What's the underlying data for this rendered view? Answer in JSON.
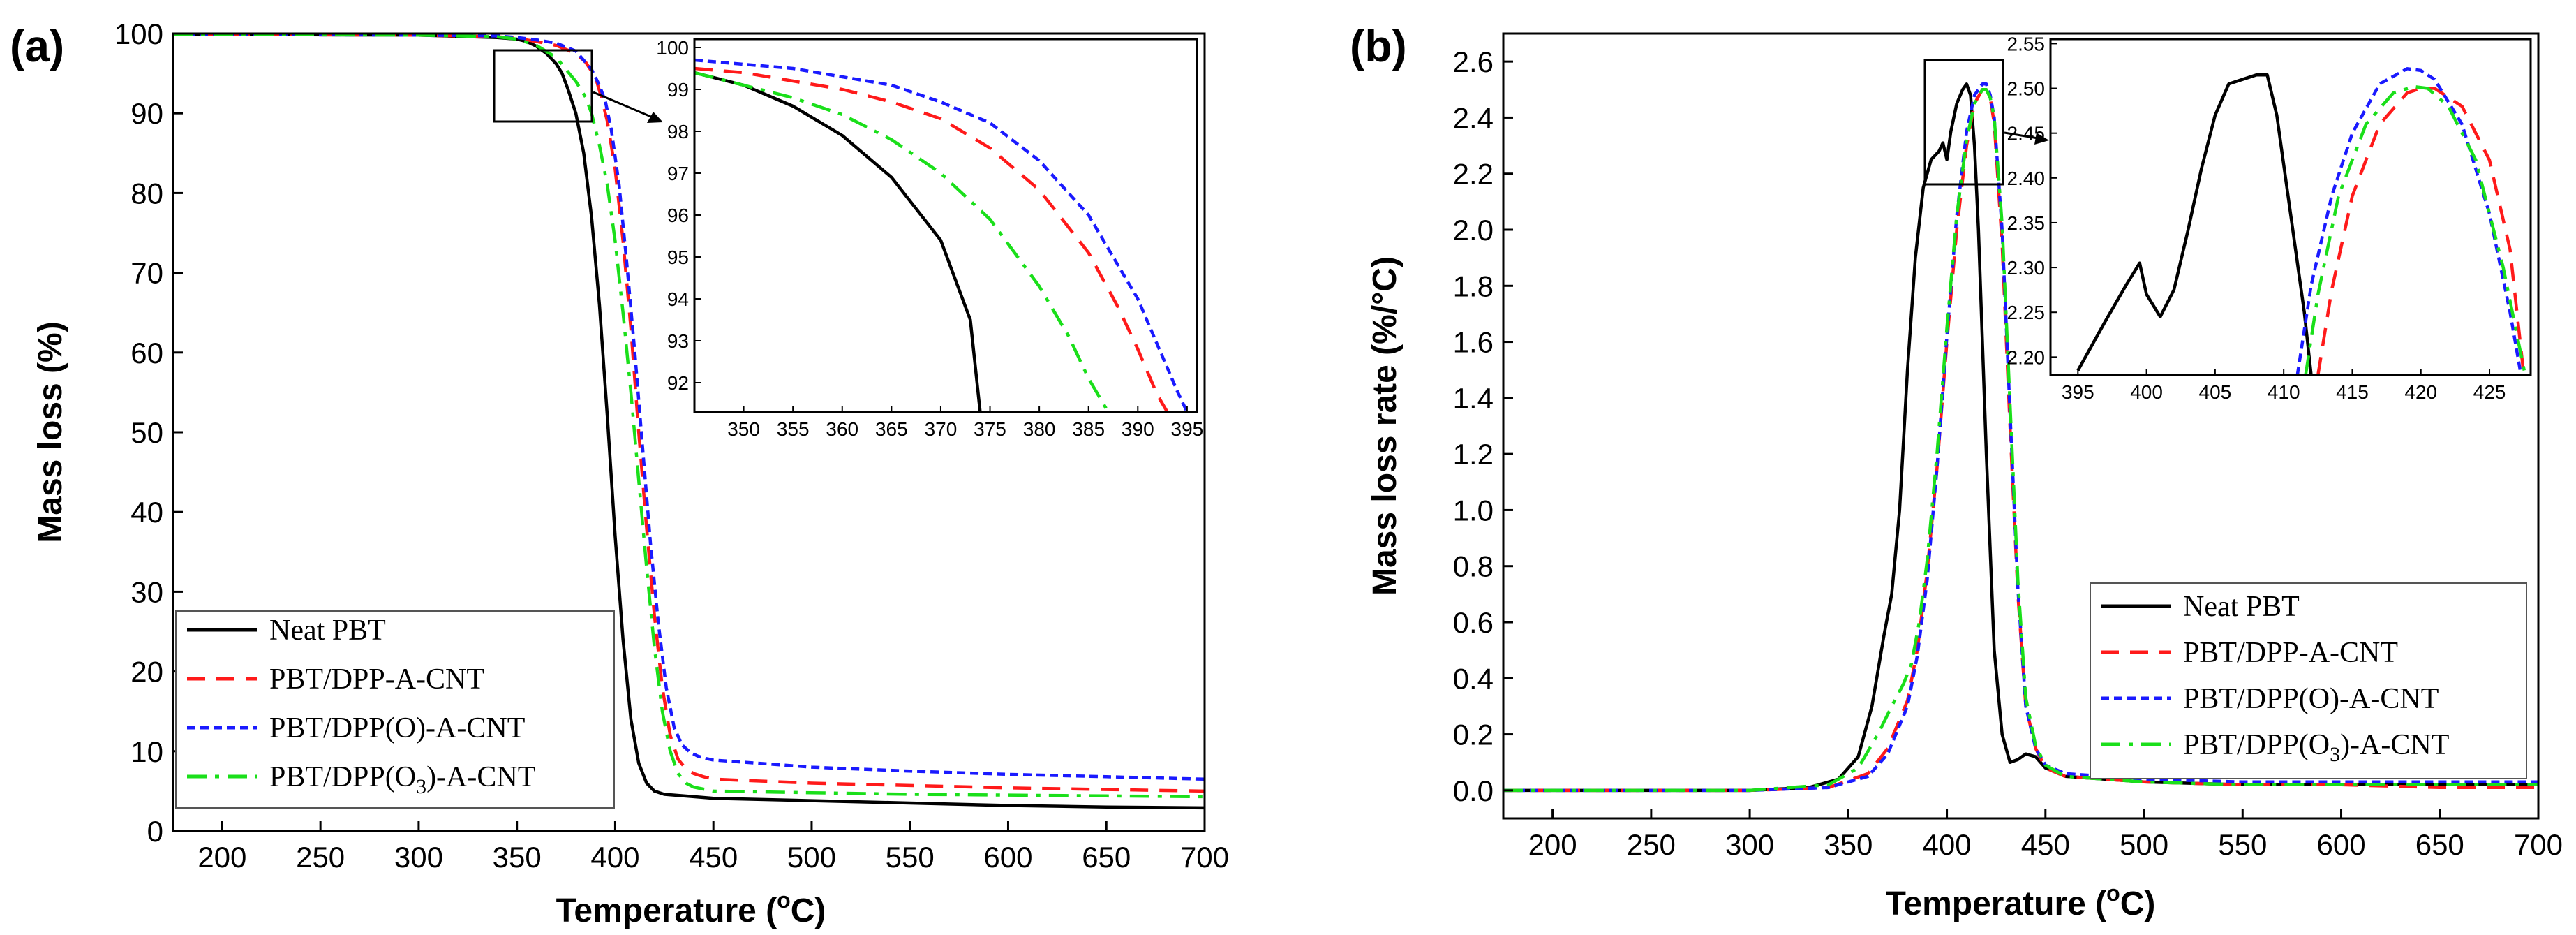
{
  "colors": {
    "neat": "#000000",
    "dpp": "#ff1a1a",
    "dppo": "#1a1aff",
    "dppo3": "#1adf1a"
  },
  "chart_data": [
    {
      "panel_label": "(a)",
      "type": "line",
      "xlabel_main": "Temperature (",
      "xlabel_unit_sup": "o",
      "xlabel_unit_tail": "C)",
      "ylabel": "Mass loss (%)",
      "xlim": [
        175,
        700
      ],
      "ylim": [
        0,
        100
      ],
      "xticks": [
        200,
        250,
        300,
        350,
        400,
        450,
        500,
        550,
        600,
        650,
        700
      ],
      "yticks": [
        0,
        10,
        20,
        30,
        40,
        50,
        60,
        70,
        80,
        90,
        100
      ],
      "legend_position": "bottom-left",
      "series": [
        {
          "name": "Neat PBT",
          "style": "solid",
          "color_key": "neat",
          "x": [
            175,
            300,
            340,
            350,
            355,
            360,
            365,
            370,
            373,
            376,
            380,
            384,
            388,
            392,
            396,
            400,
            404,
            408,
            412,
            416,
            420,
            425,
            430,
            440,
            450,
            500,
            550,
            600,
            650,
            700
          ],
          "y": [
            99.9,
            99.8,
            99.5,
            99.3,
            99.0,
            98.4,
            97.5,
            96.2,
            95.0,
            93.0,
            90.0,
            85.0,
            77.0,
            66.0,
            52.0,
            37.0,
            24.0,
            14.0,
            8.5,
            6.0,
            5.0,
            4.6,
            4.5,
            4.3,
            4.1,
            3.8,
            3.5,
            3.2,
            3.0,
            2.9
          ]
        },
        {
          "name": "PBT/DPP-A-CNT",
          "style": "dash",
          "color_key": "dpp",
          "x": [
            175,
            300,
            340,
            350,
            360,
            370,
            380,
            385,
            390,
            393,
            396,
            400,
            404,
            408,
            412,
            416,
            420,
            424,
            428,
            432,
            436,
            440,
            445,
            450,
            500,
            550,
            600,
            650,
            700
          ],
          "y": [
            99.9,
            99.8,
            99.6,
            99.4,
            99.0,
            98.5,
            97.5,
            96.4,
            94.5,
            92.0,
            89.0,
            83.0,
            74.0,
            63.0,
            50.0,
            38.0,
            27.0,
            18.0,
            12.0,
            9.0,
            7.8,
            7.2,
            6.8,
            6.5,
            6.0,
            5.7,
            5.4,
            5.2,
            5.0
          ]
        },
        {
          "name": "PBT/DPP(O)-A-CNT",
          "style": "dot",
          "color_key": "dppo",
          "x": [
            175,
            300,
            340,
            350,
            360,
            370,
            380,
            388,
            392,
            395,
            398,
            402,
            406,
            410,
            414,
            418,
            422,
            426,
            430,
            434,
            438,
            442,
            446,
            450,
            500,
            550,
            600,
            650,
            700
          ],
          "y": [
            99.9,
            99.8,
            99.7,
            99.5,
            99.2,
            98.8,
            97.8,
            95.5,
            93.5,
            91.5,
            88.0,
            81.0,
            71.0,
            60.0,
            48.0,
            36.0,
            26.0,
            18.0,
            13.0,
            10.8,
            9.9,
            9.4,
            9.1,
            8.9,
            8.0,
            7.5,
            7.1,
            6.8,
            6.5
          ]
        },
        {
          "name": "PBT/DPP(O3)-A-CNT",
          "legend_main": "PBT/DPP(O",
          "legend_sub": "3",
          "legend_tail": ")-A-CNT",
          "style": "dashdot",
          "color_key": "dppo3",
          "x": [
            175,
            300,
            340,
            350,
            360,
            370,
            375,
            380,
            385,
            388,
            392,
            396,
            400,
            404,
            408,
            412,
            416,
            420,
            424,
            428,
            432,
            436,
            440,
            450,
            500,
            550,
            600,
            650,
            700
          ],
          "y": [
            99.9,
            99.8,
            99.6,
            99.3,
            98.5,
            97.0,
            95.5,
            94.0,
            92.0,
            90.0,
            86.0,
            81.0,
            74.0,
            65.0,
            55.0,
            44.0,
            33.0,
            23.0,
            15.0,
            10.0,
            7.2,
            6.0,
            5.5,
            5.0,
            4.8,
            4.6,
            4.5,
            4.4,
            4.3
          ]
        }
      ],
      "inset": {
        "xlim": [
          345,
          396
        ],
        "ylim": [
          91.3,
          100.2
        ],
        "xticks": [
          350,
          355,
          360,
          365,
          370,
          375,
          380,
          385,
          390,
          395
        ],
        "yticks": [
          92,
          93,
          94,
          95,
          96,
          97,
          98,
          99,
          100
        ],
        "series_x": [
          [
            345,
            350,
            355,
            360,
            365,
            370,
            373,
            374
          ],
          [
            345,
            350,
            355,
            360,
            365,
            370,
            375,
            380,
            385,
            388,
            390,
            392,
            393
          ],
          [
            345,
            350,
            355,
            360,
            365,
            370,
            375,
            380,
            385,
            390,
            392,
            394,
            395
          ],
          [
            345,
            350,
            355,
            360,
            365,
            370,
            375,
            380,
            383,
            385,
            387
          ]
        ],
        "series_y": [
          [
            99.4,
            99.1,
            98.6,
            97.9,
            96.9,
            95.4,
            93.5,
            91.3
          ],
          [
            99.5,
            99.4,
            99.2,
            99.0,
            98.7,
            98.3,
            97.6,
            96.6,
            95.1,
            93.8,
            92.8,
            91.7,
            91.3
          ],
          [
            99.7,
            99.6,
            99.5,
            99.3,
            99.1,
            98.7,
            98.2,
            97.3,
            96.0,
            94.0,
            92.9,
            91.8,
            91.3
          ],
          [
            99.4,
            99.1,
            98.8,
            98.4,
            97.8,
            97.0,
            95.9,
            94.3,
            93.1,
            92.1,
            91.3
          ]
        ]
      }
    },
    {
      "panel_label": "(b)",
      "type": "line",
      "xlabel_main": "Temperature (",
      "xlabel_unit_sup": "o",
      "xlabel_unit_tail": "C)",
      "ylabel": "Mass loss rate (%/°C)",
      "xlim": [
        175,
        700
      ],
      "ylim": [
        -0.1,
        2.7
      ],
      "xticks": [
        200,
        250,
        300,
        350,
        400,
        450,
        500,
        550,
        600,
        650,
        700
      ],
      "yticks": [
        0.0,
        0.2,
        0.4,
        0.6,
        0.8,
        1.0,
        1.2,
        1.4,
        1.6,
        1.8,
        2.0,
        2.2,
        2.4,
        2.6
      ],
      "ytick_labels": [
        "0.0",
        "0.2",
        "0.4",
        "0.6",
        "0.8",
        "1.0",
        "1.2",
        "1.4",
        "1.6",
        "1.8",
        "2.0",
        "2.2",
        "2.4",
        "2.6"
      ],
      "legend_position": "bottom-right",
      "series": [
        {
          "name": "Neat PBT",
          "style": "solid",
          "color_key": "neat",
          "x": [
            175,
            300,
            330,
            345,
            355,
            362,
            368,
            372,
            376,
            380,
            384,
            388,
            392,
            396,
            398,
            400,
            402,
            405,
            408,
            410,
            412,
            414,
            416,
            420,
            424,
            428,
            432,
            436,
            440,
            445,
            450,
            460,
            500,
            550,
            600,
            650,
            700
          ],
          "y": [
            0.0,
            0.0,
            0.01,
            0.04,
            0.12,
            0.3,
            0.55,
            0.7,
            1.0,
            1.5,
            1.9,
            2.15,
            2.25,
            2.28,
            2.31,
            2.25,
            2.35,
            2.45,
            2.5,
            2.52,
            2.48,
            2.3,
            2.0,
            1.2,
            0.5,
            0.2,
            0.1,
            0.11,
            0.13,
            0.12,
            0.08,
            0.05,
            0.03,
            0.02,
            0.02,
            0.02,
            0.02
          ]
        },
        {
          "name": "PBT/DPP-A-CNT",
          "style": "dash",
          "color_key": "dpp",
          "x": [
            175,
            300,
            340,
            360,
            370,
            380,
            385,
            390,
            395,
            400,
            405,
            410,
            414,
            418,
            420,
            422,
            424,
            428,
            432,
            436,
            440,
            445,
            450,
            460,
            500,
            550,
            600,
            650,
            700
          ],
          "y": [
            0.0,
            0.0,
            0.01,
            0.06,
            0.15,
            0.32,
            0.5,
            0.78,
            1.15,
            1.6,
            2.0,
            2.3,
            2.45,
            2.5,
            2.5,
            2.47,
            2.38,
            1.95,
            1.3,
            0.7,
            0.3,
            0.15,
            0.08,
            0.05,
            0.03,
            0.02,
            0.02,
            0.01,
            0.01
          ]
        },
        {
          "name": "PBT/DPP(O)-A-CNT",
          "style": "dot",
          "color_key": "dppo",
          "x": [
            175,
            300,
            340,
            360,
            370,
            380,
            385,
            390,
            395,
            400,
            405,
            410,
            414,
            418,
            420,
            422,
            424,
            428,
            432,
            436,
            440,
            445,
            450,
            460,
            500,
            550,
            600,
            650,
            700
          ],
          "y": [
            0.0,
            0.0,
            0.01,
            0.05,
            0.13,
            0.3,
            0.48,
            0.75,
            1.15,
            1.62,
            2.05,
            2.35,
            2.48,
            2.52,
            2.52,
            2.48,
            2.4,
            2.0,
            1.35,
            0.72,
            0.3,
            0.15,
            0.09,
            0.06,
            0.04,
            0.03,
            0.03,
            0.03,
            0.03
          ]
        },
        {
          "name": "PBT/DPP(O3)-A-CNT",
          "legend_main": "PBT/DPP(O",
          "legend_sub": "3",
          "legend_tail": ")-A-CNT",
          "style": "dashdot",
          "color_key": "dppo3",
          "x": [
            175,
            300,
            340,
            355,
            365,
            372,
            378,
            382,
            386,
            390,
            395,
            400,
            405,
            410,
            414,
            418,
            420,
            422,
            424,
            428,
            432,
            436,
            440,
            445,
            450,
            460,
            500,
            550,
            600,
            650,
            700
          ],
          "y": [
            0.0,
            0.0,
            0.02,
            0.08,
            0.2,
            0.3,
            0.38,
            0.45,
            0.6,
            0.82,
            1.2,
            1.65,
            2.05,
            2.32,
            2.45,
            2.5,
            2.5,
            2.47,
            2.4,
            2.02,
            1.38,
            0.75,
            0.33,
            0.16,
            0.09,
            0.05,
            0.03,
            0.02,
            0.02,
            0.02,
            0.02
          ]
        }
      ],
      "inset": {
        "xlim": [
          393,
          428
        ],
        "ylim": [
          2.18,
          2.555
        ],
        "xticks": [
          395,
          400,
          405,
          410,
          415,
          420,
          425
        ],
        "yticks": [
          2.2,
          2.25,
          2.3,
          2.35,
          2.4,
          2.45,
          2.5,
          2.55
        ],
        "ytick_labels": [
          "2.20",
          "2.25",
          "2.30",
          "2.35",
          "2.40",
          "2.45",
          "2.50",
          "2.55"
        ],
        "series_x": [
          [
            395,
            397,
            398.5,
            399.5,
            400,
            401,
            402,
            403,
            404,
            405,
            406,
            407,
            408,
            408.8,
            409.5,
            410.5,
            411.5,
            412
          ],
          [
            412.5,
            413.5,
            415,
            417,
            419,
            420,
            421,
            423,
            425,
            426.5,
            427.5
          ],
          [
            411,
            412,
            413.5,
            415,
            417,
            419,
            420,
            421,
            423,
            425,
            426.5,
            427.3
          ],
          [
            411.6,
            412.5,
            414,
            416,
            418,
            419.5,
            420.5,
            422,
            424,
            426,
            427.6
          ]
        ],
        "series_y": [
          [
            2.185,
            2.24,
            2.28,
            2.305,
            2.27,
            2.245,
            2.275,
            2.34,
            2.41,
            2.47,
            2.505,
            2.51,
            2.515,
            2.515,
            2.47,
            2.36,
            2.25,
            2.18
          ],
          [
            2.18,
            2.275,
            2.38,
            2.46,
            2.495,
            2.5,
            2.5,
            2.48,
            2.42,
            2.32,
            2.18
          ],
          [
            2.18,
            2.28,
            2.38,
            2.45,
            2.505,
            2.522,
            2.52,
            2.51,
            2.46,
            2.36,
            2.25,
            2.18
          ],
          [
            2.18,
            2.27,
            2.38,
            2.46,
            2.495,
            2.502,
            2.5,
            2.48,
            2.42,
            2.3,
            2.18
          ]
        ]
      }
    }
  ]
}
